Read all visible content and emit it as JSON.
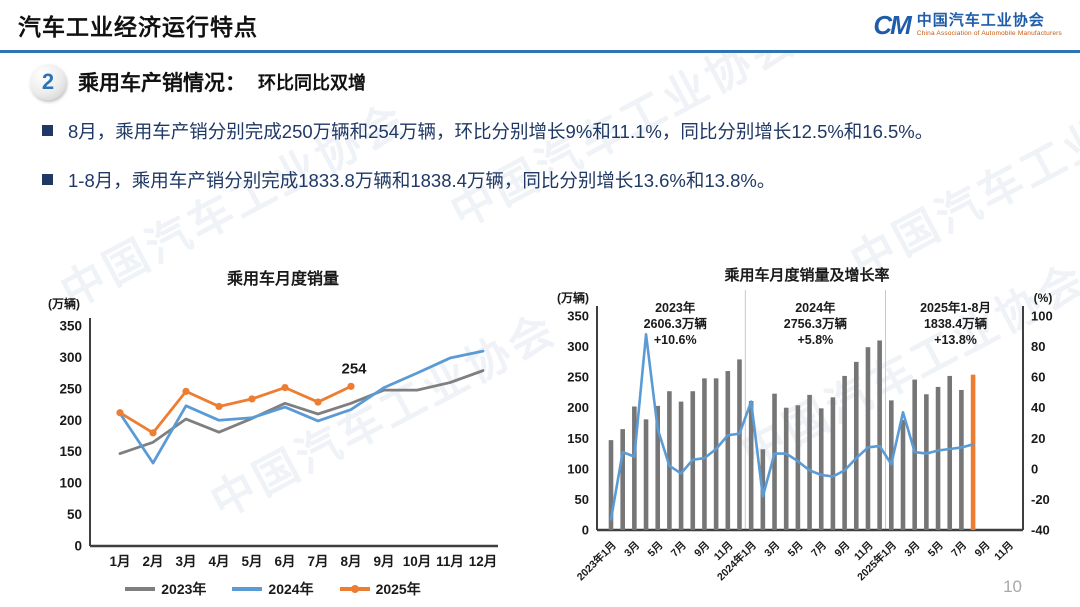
{
  "header": {
    "title": "汽车工业经济运行特点",
    "logo": {
      "mark": "CM",
      "org_cn": "中国汽车工业协会",
      "org_en": "China Association of Automobile Manufacturers"
    }
  },
  "section": {
    "number": "2",
    "title": "乘用车产销情况：",
    "subtitle": "环比同比双增"
  },
  "bullets": [
    "8月，乘用车产销分别完成250万辆和254万辆，环比分别增长9%和11.1%，同比分别增长12.5%和16.5%。",
    "1-8月，乘用车产销分别完成1833.8万辆和1838.4万辆，同比分别增长13.6%和13.8%。"
  ],
  "page_number": "10",
  "watermark": "中国汽车工业协会",
  "colors": {
    "accent_blue": "#2E74B5",
    "body_text": "#1F3864",
    "series_2023": "#7F7F7F",
    "series_2024": "#5B9BD5",
    "series_2025": "#ED7D31",
    "bar_gray": "#767676",
    "bar_highlight": "#ED7D31",
    "growth_line": "#5B9BD5"
  },
  "chart_data": [
    {
      "type": "line",
      "title": "乘用车月度销量",
      "unit_label": "(万辆)",
      "xlabel": "",
      "ylabel": "万辆",
      "ylim": [
        0,
        350
      ],
      "yticks": [
        0,
        50,
        100,
        150,
        200,
        250,
        300,
        350
      ],
      "categories": [
        "1月",
        "2月",
        "3月",
        "4月",
        "5月",
        "6月",
        "7月",
        "8月",
        "9月",
        "10月",
        "11月",
        "12月"
      ],
      "series": [
        {
          "name": "2023年",
          "color": "#7F7F7F",
          "marker": false,
          "values": [
            147,
            165,
            202,
            181,
            203,
            227,
            210,
            227,
            248,
            248,
            260,
            279
          ]
        },
        {
          "name": "2024年",
          "color": "#5B9BD5",
          "marker": false,
          "values": [
            211,
            132,
            223,
            200,
            204,
            221,
            199,
            217,
            252,
            275,
            299,
            310
          ]
        },
        {
          "name": "2025年",
          "color": "#ED7D31",
          "marker": true,
          "values": [
            212,
            180,
            246,
            222,
            234,
            252,
            229,
            254
          ]
        }
      ],
      "annotation": {
        "text": "254",
        "series_index": 2,
        "point_index": 7
      },
      "legend_position": "bottom",
      "grid": false
    },
    {
      "type": "bar+line",
      "title": "乘用车月度销量及增长率",
      "unit_label_left": "(万辆)",
      "unit_label_right": "(%)",
      "left_ylim": [
        0,
        350
      ],
      "right_ylim": [
        -40,
        100
      ],
      "left_yticks": [
        0,
        50,
        100,
        150,
        200,
        250,
        300,
        350
      ],
      "right_yticks": [
        -40,
        -20,
        0,
        20,
        40,
        60,
        80,
        100
      ],
      "categories": [
        "2023年1月",
        "2月",
        "3月",
        "4月",
        "5月",
        "6月",
        "7月",
        "8月",
        "9月",
        "10月",
        "11月",
        "12月",
        "2024年1月",
        "2月",
        "3月",
        "4月",
        "5月",
        "6月",
        "7月",
        "8月",
        "9月",
        "10月",
        "11月",
        "12月",
        "2025年1月",
        "2月",
        "3月",
        "4月",
        "5月",
        "6月",
        "7月",
        "8月",
        "9月",
        "10月",
        "11月",
        "12月"
      ],
      "xtick_step": 2,
      "bars": {
        "name": "月度销量(万辆)",
        "color": "#767676",
        "highlight_color": "#ED7D31",
        "highlight_index": 31,
        "values": [
          147,
          165,
          202,
          181,
          203,
          227,
          210,
          227,
          248,
          248,
          260,
          279,
          211,
          132,
          223,
          200,
          204,
          221,
          199,
          217,
          252,
          275,
          299,
          310,
          212,
          180,
          246,
          222,
          234,
          252,
          229,
          254
        ]
      },
      "line": {
        "name": "同比增长率(%)",
        "color": "#5B9BD5",
        "values": [
          -33,
          11,
          8,
          88,
          26,
          2,
          -3,
          6,
          7,
          13,
          22,
          23,
          44,
          -18,
          10,
          10,
          5,
          -1,
          -4,
          -5,
          -1,
          7,
          14,
          15,
          3,
          37,
          11,
          10,
          12,
          13,
          14,
          16
        ]
      },
      "dividers_after_index": [
        11,
        23
      ],
      "annotations": [
        {
          "lines": [
            "2023年",
            "2606.3万辆",
            "+10.6%"
          ]
        },
        {
          "lines": [
            "2024年",
            "2756.3万辆",
            "+5.8%"
          ]
        },
        {
          "lines": [
            "2025年1-8月",
            "1838.4万辆",
            "+13.8%"
          ]
        }
      ],
      "grid": false
    }
  ]
}
